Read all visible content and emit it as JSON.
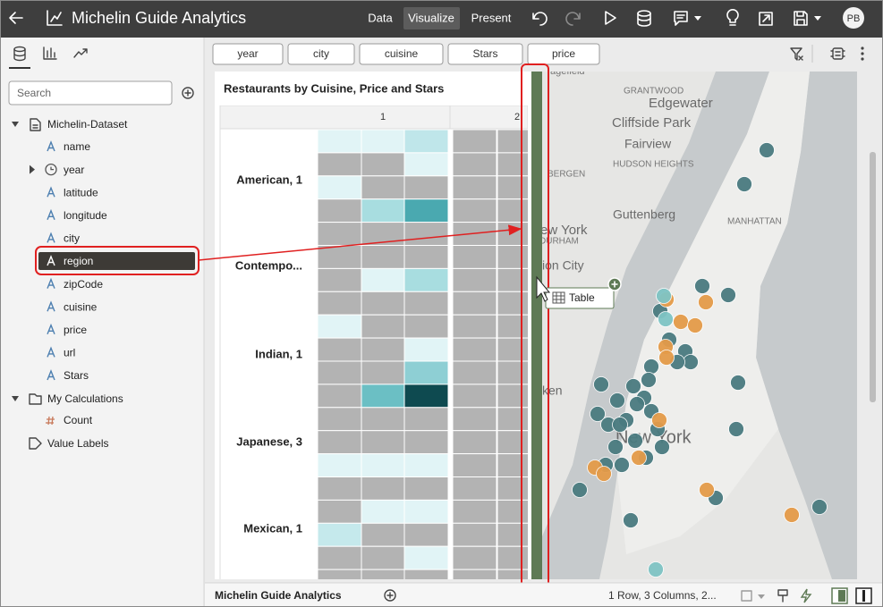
{
  "header": {
    "title": "Michelin Guide Analytics",
    "tabs": [
      "Data",
      "Visualize",
      "Present"
    ],
    "avatar": "PB"
  },
  "sidebar": {
    "search_placeholder": "Search",
    "dataset": {
      "name": "Michelin-Dataset",
      "fields": [
        "name",
        "year",
        "latitude",
        "longitude",
        "city",
        "region",
        "zipCode",
        "cuisine",
        "price",
        "url",
        "Stars"
      ]
    },
    "calculations": {
      "name": "My Calculations",
      "items": [
        "Count"
      ]
    },
    "value_labels": "Value Labels"
  },
  "filters": [
    "year",
    "city",
    "cuisine",
    "Stars",
    "price"
  ],
  "visualization": {
    "title": "Restaurants by Cuisine, Price and Stars",
    "column_headers": [
      "1",
      "2"
    ],
    "row_labels": [
      "American, 1",
      "Contempo...",
      "Indian, 1",
      "Japanese, 3",
      "Mexican, 1"
    ]
  },
  "map": {
    "labels": [
      "agefield",
      "GRANTWOOD",
      "Edgewater",
      "Cliffside Park",
      "Fairview",
      "BERGEN",
      "HUDSON HEIGHTS",
      "Guttenberg",
      "MANHATTAN",
      "ew York",
      "DURHAM",
      "ion City",
      "ken",
      "New York"
    ]
  },
  "drag_tooltip": "Table",
  "footer": {
    "canvas_tab": "Michelin Guide Analytics",
    "status": "1 Row, 3 Columns, 2..."
  }
}
